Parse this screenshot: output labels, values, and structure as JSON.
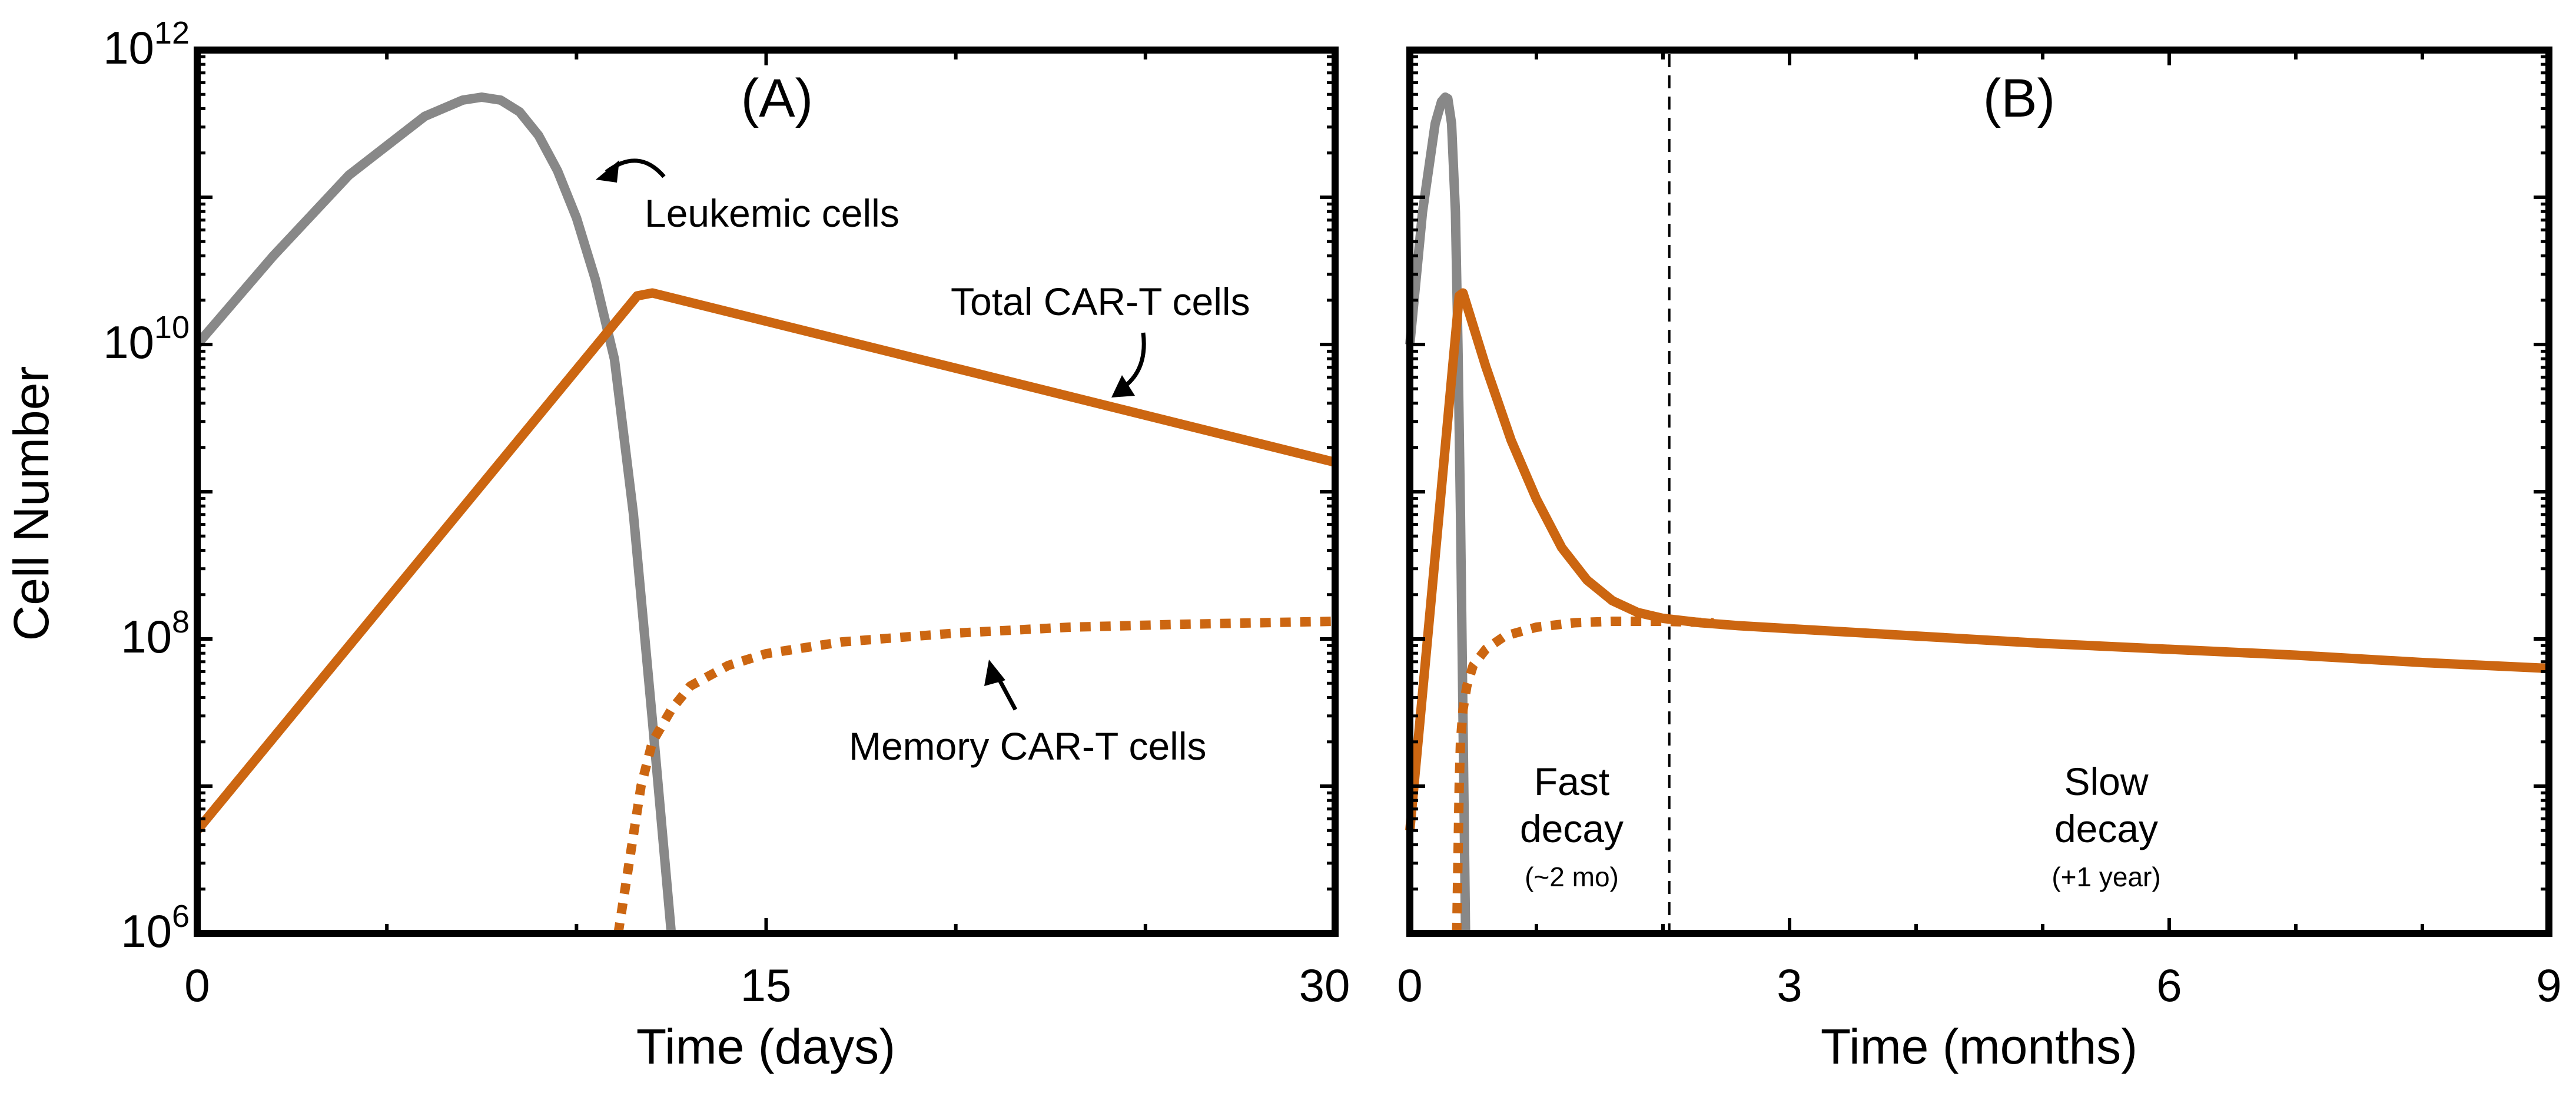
{
  "colors": {
    "leukemic": "#888888",
    "car_t": "#CC6611",
    "axis": "#000000"
  },
  "chart_data": [
    {
      "type": "line",
      "panel_label": "(A)",
      "xlabel": "Time (days)",
      "ylabel": "Cell Number",
      "xlim": [
        0,
        30
      ],
      "ylim_log10": [
        6,
        12
      ],
      "yscale": "log",
      "x_ticks": [
        0,
        15,
        30
      ],
      "y_ticks": [
        {
          "base": "10",
          "exp": "6",
          "value": 6
        },
        {
          "base": "10",
          "exp": "8",
          "value": 8
        },
        {
          "base": "10",
          "exp": "10",
          "value": 10
        },
        {
          "base": "10",
          "exp": "12",
          "value": 12
        }
      ],
      "series": [
        {
          "name": "Leukemic cells",
          "color": "#888888",
          "style": "solid",
          "x": [
            0,
            2,
            4,
            6,
            7,
            7.5,
            8,
            8.5,
            9,
            9.5,
            10,
            10.5,
            11,
            11.5,
            12,
            12.5
          ],
          "log10_values": [
            10.0,
            10.6,
            11.15,
            11.55,
            11.66,
            11.68,
            11.66,
            11.58,
            11.42,
            11.18,
            10.86,
            10.44,
            9.9,
            8.85,
            7.45,
            6.0
          ]
        },
        {
          "name": "Total CAR-T cells",
          "color": "#CC6611",
          "style": "solid",
          "x": [
            0,
            11.6,
            12.0,
            30
          ],
          "log10_values": [
            6.7,
            10.33,
            10.35,
            9.2
          ]
        },
        {
          "name": "Memory CAR-T cells",
          "color": "#CC6611",
          "style": "dotted",
          "x": [
            11.1,
            11.4,
            11.7,
            12,
            12.5,
            13,
            14,
            15,
            17,
            20,
            23,
            26,
            30
          ],
          "log10_values": [
            6.0,
            6.5,
            7.0,
            7.3,
            7.52,
            7.68,
            7.82,
            7.9,
            7.98,
            8.04,
            8.08,
            8.1,
            8.12
          ]
        }
      ],
      "annotations": [
        {
          "text": "Leukemic cells",
          "points_to": "Leukemic cells"
        },
        {
          "text": "Total CAR-T cells",
          "points_to": "Total CAR-T cells"
        },
        {
          "text": "Memory CAR-T cells",
          "points_to": "Memory CAR-T cells"
        }
      ]
    },
    {
      "type": "line",
      "panel_label": "(B)",
      "xlabel": "Time (months)",
      "xlim": [
        0,
        9
      ],
      "ylim_log10": [
        6,
        12
      ],
      "yscale": "log",
      "x_ticks": [
        0,
        3,
        6,
        9
      ],
      "phase_divider_x": 2.05,
      "series": [
        {
          "name": "Leukemic cells",
          "color": "#888888",
          "style": "solid",
          "x": [
            0,
            0.1,
            0.2,
            0.25,
            0.28,
            0.3,
            0.33,
            0.36,
            0.38,
            0.4,
            0.42,
            0.44
          ],
          "log10_values": [
            10.0,
            10.9,
            11.5,
            11.65,
            11.68,
            11.67,
            11.5,
            10.9,
            10.0,
            8.85,
            7.45,
            6.0
          ]
        },
        {
          "name": "Total CAR-T cells",
          "color": "#CC6611",
          "style": "solid",
          "x": [
            0,
            0.39,
            0.42,
            0.6,
            0.8,
            1.0,
            1.2,
            1.4,
            1.6,
            1.8,
            2.0,
            2.3,
            2.6,
            3.0,
            4.0,
            5.0,
            6.0,
            7.0,
            8.0,
            9.0
          ],
          "log10_values": [
            6.7,
            10.33,
            10.35,
            9.85,
            9.35,
            8.95,
            8.62,
            8.4,
            8.26,
            8.18,
            8.14,
            8.11,
            8.09,
            8.07,
            8.02,
            7.97,
            7.93,
            7.89,
            7.84,
            7.8
          ]
        },
        {
          "name": "Memory CAR-T cells",
          "color": "#CC6611",
          "style": "dotted",
          "x": [
            0.37,
            0.38,
            0.39,
            0.4,
            0.42,
            0.45,
            0.5,
            0.6,
            0.75,
            1.0,
            1.3,
            1.6,
            2.0,
            2.4
          ],
          "log10_values": [
            6.0,
            6.5,
            7.0,
            7.3,
            7.52,
            7.68,
            7.82,
            7.93,
            8.02,
            8.08,
            8.11,
            8.12,
            8.12,
            8.11
          ]
        }
      ],
      "annotations": [
        {
          "main": "Fast",
          "main2": "decay",
          "sub": "(~2 mo)"
        },
        {
          "main": "Slow",
          "main2": "decay",
          "sub": "(+1 year)"
        }
      ]
    }
  ]
}
